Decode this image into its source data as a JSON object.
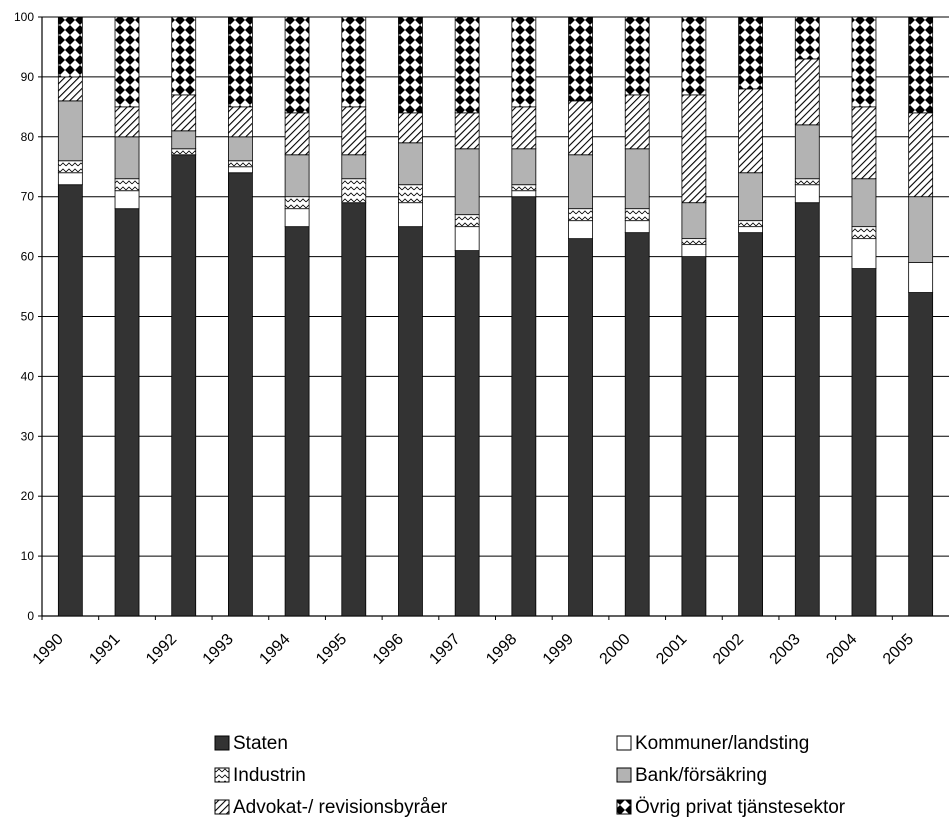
{
  "chart_data": {
    "type": "bar",
    "stacked": true,
    "categories": [
      "1990",
      "1991",
      "1992",
      "1993",
      "1994",
      "1995",
      "1996",
      "1997",
      "1998",
      "1999",
      "2000",
      "2001",
      "2002",
      "2003",
      "2004",
      "2005"
    ],
    "ylim": [
      0,
      100
    ],
    "yticks": [
      "0",
      "10",
      "20",
      "30",
      "40",
      "50",
      "60",
      "70",
      "80",
      "90",
      "100"
    ],
    "grid": true,
    "legend_position": "bottom",
    "series": [
      {
        "name": "Staten",
        "color": "#333333",
        "pattern": "solid-dark",
        "values": [
          72,
          68,
          77,
          74,
          65,
          69,
          65,
          61,
          70,
          63,
          64,
          60,
          64,
          69,
          58,
          54
        ]
      },
      {
        "name": "Kommuner/landsting",
        "color": "#ffffff",
        "pattern": "solid-white",
        "values": [
          2,
          3,
          0,
          1,
          3,
          0,
          4,
          4,
          1,
          3,
          2,
          2,
          1,
          3,
          5,
          5
        ]
      },
      {
        "name": "Industrin",
        "color": "#ffffff",
        "pattern": "zigzag",
        "values": [
          2,
          2,
          1,
          1,
          2,
          4,
          3,
          2,
          1,
          2,
          2,
          1,
          1,
          1,
          2,
          0
        ]
      },
      {
        "name": "Bank/försäkring",
        "color": "#b3b3b3",
        "pattern": "solid-gray",
        "values": [
          10,
          7,
          3,
          4,
          7,
          4,
          7,
          11,
          6,
          9,
          10,
          6,
          8,
          9,
          8,
          11
        ]
      },
      {
        "name": "Advokat-/ revisionsbyråer",
        "color": "#ffffff",
        "pattern": "diagonal",
        "values": [
          4,
          5,
          6,
          5,
          7,
          8,
          5,
          6,
          7,
          9,
          9,
          18,
          14,
          11,
          12,
          14
        ]
      },
      {
        "name": "Övrig privat tjänstesektor",
        "color": "#000000",
        "pattern": "checker",
        "values": [
          10,
          15,
          13,
          15,
          16,
          15,
          16,
          16,
          15,
          14,
          13,
          13,
          12,
          7,
          15,
          16
        ]
      }
    ]
  }
}
